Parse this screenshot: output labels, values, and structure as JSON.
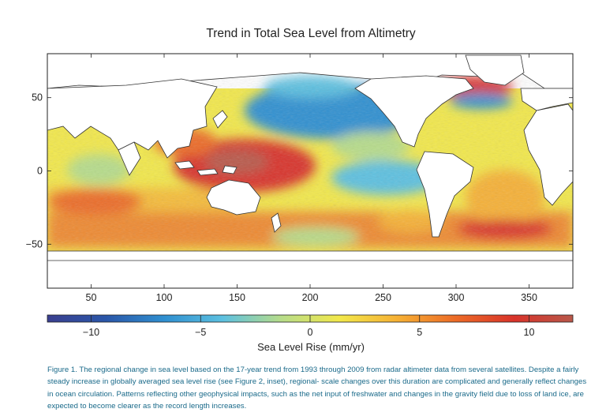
{
  "figure": {
    "title": "Trend in Total Sea Level from Altimetry",
    "caption": "Figure 1. The regional change in sea level based on the 17-year trend from 1993 through 2009 from radar altimeter data from several satellites. Despite a fairly steady increase in globally averaged sea level rise (see Figure 2, inset), regional- scale changes over this duration are complicated and generally reflect changes in ocean circulation. Patterns reflecting other geophysical impacts, such as the net input of freshwater and changes in the gravity field due to loss of land ice, are expected to become clearer as the record length increases."
  },
  "map": {
    "x_ticks": [
      50,
      100,
      150,
      200,
      250,
      300,
      350
    ],
    "y_ticks": [
      50,
      0,
      -50
    ],
    "x_range": [
      20,
      380
    ],
    "y_range": [
      -80,
      80
    ]
  },
  "colorbar": {
    "label": "Sea Level Rise (mm/yr)",
    "ticks": [
      -10,
      -5,
      0,
      5,
      10
    ],
    "tick_labels": [
      "−10",
      "−5",
      "0",
      "5",
      "10"
    ],
    "range": [
      -12,
      12
    ],
    "colors": [
      "#3a3f8f",
      "#2a56a8",
      "#2f8fd0",
      "#5cc0e0",
      "#b6dc8a",
      "#f2e84a",
      "#f6b034",
      "#ec6a26",
      "#d8332a",
      "#b8584a"
    ],
    "units": "mm/yr"
  },
  "colors": {
    "land": "#ffffff",
    "background": "#ffffff",
    "caption": "#1a6a8a"
  }
}
